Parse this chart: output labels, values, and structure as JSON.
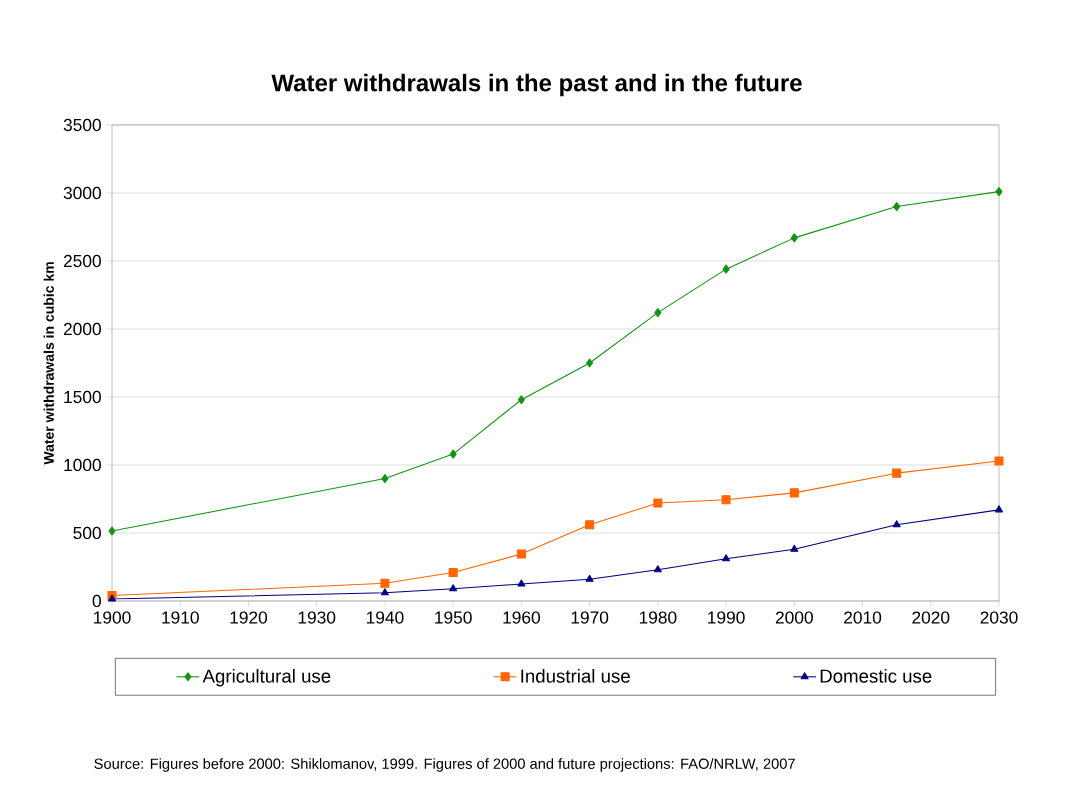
{
  "chart_data": {
    "type": "line",
    "title": "Water withdrawals in the past and in the future",
    "ylabel": "Water withdrawals in cubic km",
    "x": [
      1900,
      1940,
      1950,
      1960,
      1970,
      1980,
      1990,
      2000,
      2015,
      2030
    ],
    "series": [
      {
        "name": "Agricultural use",
        "color": "#129412",
        "marker": "diamond",
        "values": [
          515,
          900,
          1080,
          1480,
          1750,
          2120,
          2440,
          2670,
          2900,
          3010
        ]
      },
      {
        "name": "Industrial use",
        "color": "#ff6600",
        "marker": "square",
        "values": [
          40,
          130,
          210,
          345,
          560,
          720,
          745,
          795,
          940,
          1030
        ]
      },
      {
        "name": "Domestic use",
        "color": "#000080",
        "marker": "triangle",
        "values": [
          15,
          60,
          90,
          125,
          160,
          230,
          310,
          380,
          560,
          670
        ]
      }
    ],
    "xlim": [
      1900,
      2030
    ],
    "xticks": [
      1900,
      1910,
      1920,
      1930,
      1940,
      1950,
      1960,
      1970,
      1980,
      1990,
      2000,
      2010,
      2020,
      2030
    ],
    "ylim": [
      0,
      3500
    ],
    "yticks": [
      0,
      500,
      1000,
      1500,
      2000,
      2500,
      3000,
      3500
    ],
    "grid": "y",
    "legend": "bottom",
    "line_style": "solid",
    "annotations": [
      "Source: Figures before 2000: Shiklomanov, 1999. Figures of 2000 and future projections: FAO/NRLW, 2007"
    ]
  }
}
